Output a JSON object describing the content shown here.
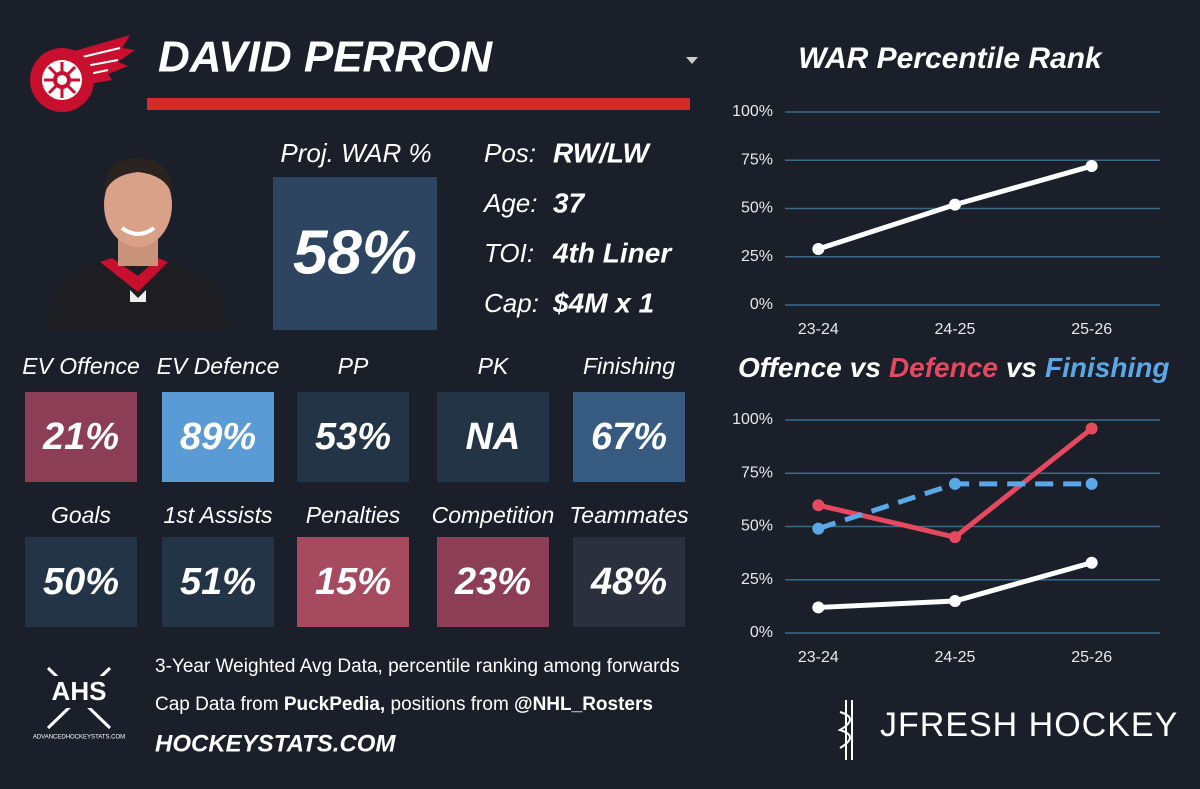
{
  "player": {
    "name": "DAVID PERRON",
    "proj_war_label": "Proj. WAR %",
    "proj_war": "58%",
    "info": [
      {
        "label": "Pos:",
        "value": "RW/LW"
      },
      {
        "label": "Age:",
        "value": "37"
      },
      {
        "label": "TOI:",
        "value": "4th Liner"
      },
      {
        "label": "Cap:",
        "value": "$4M x 1"
      }
    ]
  },
  "tiles": [
    {
      "label": "EV Offence",
      "value": "21%",
      "color": "#8c3e57"
    },
    {
      "label": "EV Defence",
      "value": "89%",
      "color": "#5b9bd5"
    },
    {
      "label": "PP",
      "value": "53%",
      "color": "#243447"
    },
    {
      "label": "PK",
      "value": "NA",
      "color": "#243447"
    },
    {
      "label": "Finishing",
      "value": "67%",
      "color": "#375a80"
    },
    {
      "label": "Goals",
      "value": "50%",
      "color": "#243447"
    },
    {
      "label": "1st Assists",
      "value": "51%",
      "color": "#243447"
    },
    {
      "label": "Penalties",
      "value": "15%",
      "color": "#a64a60"
    },
    {
      "label": "Competition",
      "value": "23%",
      "color": "#8c3e57"
    },
    {
      "label": "Teammates",
      "value": "48%",
      "color": "#2b303e"
    }
  ],
  "footer": {
    "line1": "3-Year Weighted Avg Data, percentile ranking among forwards",
    "line2": [
      "Cap Data from ",
      "PuckPedia,",
      " positions from ",
      "@NHL_Rosters"
    ],
    "site": "HOCKEYSTATS.COM",
    "logo": "AHS",
    "logo_sub": "ADVANCEDHOCKEYSTATS.COM",
    "brand": "JFRESH HOCKEY"
  },
  "chart_data": [
    {
      "type": "line",
      "title": "WAR Percentile Rank",
      "categories": [
        "23-24",
        "24-25",
        "25-26"
      ],
      "series": [
        {
          "name": "WAR",
          "color": "#ffffff",
          "values": [
            29,
            52,
            72
          ]
        }
      ],
      "ylim": [
        0,
        100
      ],
      "yticks": [
        {
          "value": 0,
          "label": "0%"
        },
        {
          "value": 25,
          "label": "25%"
        },
        {
          "value": 50,
          "label": "50%"
        },
        {
          "value": 75,
          "label": "75%"
        },
        {
          "value": 100,
          "label": "100%"
        }
      ],
      "grid": true
    },
    {
      "type": "line",
      "title_separator": "vs",
      "categories": [
        "23-24",
        "24-25",
        "25-26"
      ],
      "series": [
        {
          "name": "Offence",
          "color": "#ffffff",
          "values": [
            12,
            15,
            33
          ]
        },
        {
          "name": "Defence",
          "color": "#e5495f",
          "values": [
            60,
            45,
            96
          ]
        },
        {
          "name": "Finishing",
          "color": "#5aa8e8",
          "style": "dashed",
          "values": [
            49,
            70,
            70
          ]
        }
      ],
      "ylim": [
        0,
        100
      ],
      "yticks": [
        {
          "value": 0,
          "label": "0%"
        },
        {
          "value": 25,
          "label": "25%"
        },
        {
          "value": 50,
          "label": "50%"
        },
        {
          "value": 75,
          "label": "75%"
        },
        {
          "value": 100,
          "label": "100%"
        }
      ],
      "grid": true
    }
  ]
}
